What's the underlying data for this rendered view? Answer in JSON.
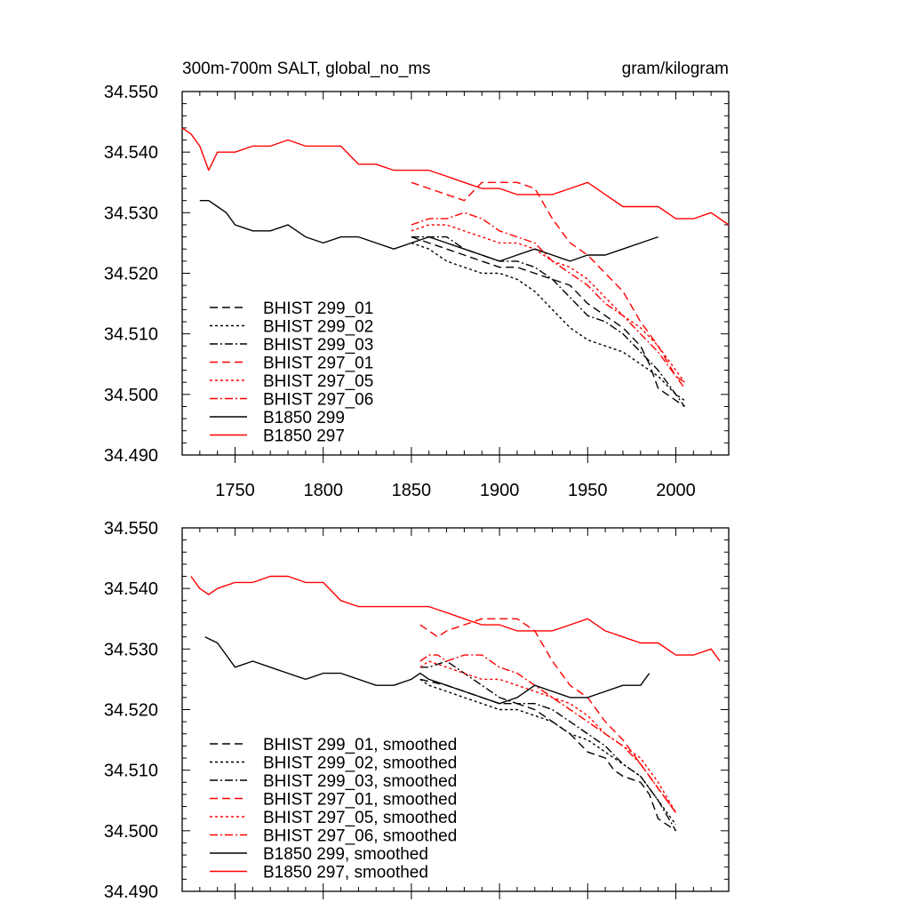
{
  "chart_data": [
    {
      "type": "line",
      "title": "300m-700m SALT, global_no_ms",
      "units": "gram/kilogram",
      "xlim": [
        1720,
        2030
      ],
      "ylim": [
        34.49,
        34.55
      ],
      "yticks": [
        34.49,
        34.5,
        34.51,
        34.52,
        34.53,
        34.54,
        34.55
      ],
      "ytick_labels": [
        "34.490",
        "34.500",
        "34.510",
        "34.520",
        "34.530",
        "34.540",
        "34.550"
      ],
      "xticks": [
        1750,
        1800,
        1850,
        1900,
        1950,
        2000
      ],
      "xtick_labels": [
        "1750",
        "1800",
        "1850",
        "1900",
        "1950",
        "2000"
      ],
      "legend_position": "bottom-left",
      "series": [
        {
          "name": "BHIST 299_01",
          "color": "#000000",
          "dash": "dashed",
          "x": [
            1850,
            1860,
            1870,
            1880,
            1890,
            1900,
            1910,
            1920,
            1930,
            1940,
            1950,
            1960,
            1970,
            1980,
            1985,
            1990,
            1995,
            2000,
            2005
          ],
          "y": [
            34.526,
            34.525,
            34.524,
            34.523,
            34.522,
            34.521,
            34.521,
            34.52,
            34.519,
            34.518,
            34.515,
            34.513,
            34.511,
            34.508,
            34.505,
            34.501,
            34.5,
            34.499,
            34.498
          ]
        },
        {
          "name": "BHIST 299_02",
          "color": "#000000",
          "dash": "dotted",
          "x": [
            1850,
            1860,
            1870,
            1880,
            1890,
            1900,
            1910,
            1920,
            1930,
            1940,
            1950,
            1960,
            1970,
            1980,
            1990,
            2000,
            2005
          ],
          "y": [
            34.525,
            34.524,
            34.522,
            34.521,
            34.52,
            34.52,
            34.519,
            34.517,
            34.514,
            34.511,
            34.509,
            34.508,
            34.507,
            34.505,
            34.503,
            34.5,
            34.499
          ]
        },
        {
          "name": "BHIST 299_03",
          "color": "#000000",
          "dash": "dashdot",
          "x": [
            1850,
            1860,
            1870,
            1880,
            1890,
            1900,
            1910,
            1920,
            1930,
            1940,
            1950,
            1960,
            1970,
            1980,
            1990,
            2000,
            2005
          ],
          "y": [
            34.526,
            34.526,
            34.526,
            34.524,
            34.523,
            34.522,
            34.522,
            34.521,
            34.519,
            34.516,
            34.513,
            34.512,
            34.51,
            34.507,
            34.504,
            34.5,
            34.498
          ]
        },
        {
          "name": "BHIST 297_01",
          "color": "#ff0000",
          "dash": "dashed",
          "x": [
            1850,
            1860,
            1870,
            1880,
            1890,
            1900,
            1910,
            1920,
            1930,
            1940,
            1950,
            1960,
            1970,
            1980,
            1990,
            2000,
            2005
          ],
          "y": [
            34.535,
            34.534,
            34.533,
            34.532,
            34.535,
            34.535,
            34.535,
            34.534,
            34.529,
            34.525,
            34.523,
            34.52,
            34.517,
            34.512,
            34.508,
            34.503,
            34.502
          ]
        },
        {
          "name": "BHIST 297_05",
          "color": "#ff0000",
          "dash": "dotted",
          "x": [
            1850,
            1860,
            1870,
            1880,
            1890,
            1900,
            1910,
            1920,
            1930,
            1940,
            1950,
            1960,
            1970,
            1980,
            1990,
            2000,
            2005
          ],
          "y": [
            34.527,
            34.528,
            34.528,
            34.527,
            34.526,
            34.525,
            34.525,
            34.524,
            34.522,
            34.521,
            34.519,
            34.516,
            34.513,
            34.511,
            34.508,
            34.504,
            34.502
          ]
        },
        {
          "name": "BHIST 297_06",
          "color": "#ff0000",
          "dash": "dashdot",
          "x": [
            1850,
            1860,
            1870,
            1880,
            1890,
            1900,
            1910,
            1920,
            1930,
            1940,
            1950,
            1960,
            1970,
            1980,
            1990,
            2000,
            2005
          ],
          "y": [
            34.528,
            34.529,
            34.529,
            34.53,
            34.529,
            34.527,
            34.526,
            34.525,
            34.522,
            34.52,
            34.518,
            34.515,
            34.513,
            34.51,
            34.507,
            34.503,
            34.501
          ]
        },
        {
          "name": "B1850 299",
          "color": "#000000",
          "dash": "solid",
          "x": [
            1730,
            1735,
            1740,
            1745,
            1750,
            1760,
            1770,
            1780,
            1790,
            1800,
            1810,
            1820,
            1830,
            1840,
            1850,
            1860,
            1870,
            1880,
            1890,
            1900,
            1910,
            1920,
            1930,
            1940,
            1950,
            1960,
            1970,
            1980,
            1990
          ],
          "y": [
            34.532,
            34.532,
            34.531,
            34.53,
            34.528,
            34.527,
            34.527,
            34.528,
            34.526,
            34.525,
            34.526,
            34.526,
            34.525,
            34.524,
            34.525,
            34.526,
            34.525,
            34.524,
            34.523,
            34.522,
            34.523,
            34.524,
            34.523,
            34.522,
            34.523,
            34.523,
            34.524,
            34.525,
            34.526
          ]
        },
        {
          "name": "B1850 297",
          "color": "#ff0000",
          "dash": "solid",
          "x": [
            1720,
            1725,
            1730,
            1735,
            1740,
            1750,
            1760,
            1770,
            1780,
            1790,
            1800,
            1810,
            1820,
            1830,
            1840,
            1850,
            1860,
            1870,
            1880,
            1890,
            1900,
            1910,
            1920,
            1930,
            1940,
            1950,
            1960,
            1970,
            1980,
            1990,
            2000,
            2010,
            2020,
            2030
          ],
          "y": [
            34.544,
            34.543,
            34.541,
            34.537,
            34.54,
            34.54,
            34.541,
            34.541,
            34.542,
            34.541,
            34.541,
            34.541,
            34.538,
            34.538,
            34.537,
            34.537,
            34.537,
            34.536,
            34.535,
            34.534,
            34.534,
            34.533,
            34.533,
            34.533,
            34.534,
            34.535,
            34.533,
            34.531,
            34.531,
            34.531,
            34.529,
            34.529,
            34.53,
            34.528
          ]
        }
      ]
    },
    {
      "type": "line",
      "xlim": [
        1720,
        2030
      ],
      "ylim": [
        34.49,
        34.55
      ],
      "yticks": [
        34.49,
        34.5,
        34.51,
        34.52,
        34.53,
        34.54,
        34.55
      ],
      "ytick_labels": [
        "34.490",
        "34.500",
        "34.510",
        "34.520",
        "34.530",
        "34.540",
        "34.550"
      ],
      "xticks": [
        1750,
        1800,
        1850,
        1900,
        1950,
        2000
      ],
      "legend_position": "bottom-left",
      "series": [
        {
          "name": "BHIST 299_01, smoothed",
          "color": "#000000",
          "dash": "dashed",
          "x": [
            1855,
            1870,
            1880,
            1890,
            1900,
            1910,
            1920,
            1930,
            1940,
            1950,
            1960,
            1965,
            1970,
            1980,
            1985,
            1990,
            2000
          ],
          "y": [
            34.525,
            34.524,
            34.523,
            34.522,
            34.521,
            34.521,
            34.52,
            34.518,
            34.516,
            34.513,
            34.512,
            34.51,
            34.509,
            34.508,
            34.506,
            34.502,
            34.5
          ]
        },
        {
          "name": "BHIST 299_02, smoothed",
          "color": "#000000",
          "dash": "dotted",
          "x": [
            1855,
            1860,
            1870,
            1880,
            1890,
            1900,
            1910,
            1920,
            1930,
            1940,
            1950,
            1960,
            1970,
            1980,
            1990,
            2000
          ],
          "y": [
            34.525,
            34.524,
            34.523,
            34.522,
            34.521,
            34.52,
            34.52,
            34.519,
            34.518,
            34.516,
            34.515,
            34.513,
            34.511,
            34.509,
            34.505,
            34.501
          ]
        },
        {
          "name": "BHIST 299_03, smoothed",
          "color": "#000000",
          "dash": "dashdot",
          "x": [
            1855,
            1860,
            1870,
            1880,
            1890,
            1900,
            1910,
            1920,
            1930,
            1940,
            1950,
            1960,
            1970,
            1980,
            1990,
            2000
          ],
          "y": [
            34.527,
            34.527,
            34.528,
            34.526,
            34.524,
            34.522,
            34.521,
            34.521,
            34.52,
            34.518,
            34.516,
            34.514,
            34.511,
            34.509,
            34.505,
            34.5
          ]
        },
        {
          "name": "BHIST 297_01, smoothed",
          "color": "#ff0000",
          "dash": "dashed",
          "x": [
            1855,
            1865,
            1870,
            1880,
            1890,
            1900,
            1910,
            1920,
            1930,
            1940,
            1950,
            1960,
            1970,
            1980,
            1990,
            2000
          ],
          "y": [
            34.534,
            34.532,
            34.533,
            34.534,
            34.535,
            34.535,
            34.535,
            34.533,
            34.528,
            34.524,
            34.522,
            34.518,
            34.515,
            34.511,
            34.507,
            34.503
          ]
        },
        {
          "name": "BHIST 297_05, smoothed",
          "color": "#ff0000",
          "dash": "dotted",
          "x": [
            1855,
            1860,
            1870,
            1880,
            1890,
            1900,
            1910,
            1920,
            1930,
            1940,
            1950,
            1960,
            1970,
            1980,
            1990,
            2000
          ],
          "y": [
            34.527,
            34.528,
            34.527,
            34.526,
            34.525,
            34.525,
            34.524,
            34.523,
            34.522,
            34.521,
            34.519,
            34.516,
            34.514,
            34.512,
            34.508,
            34.503
          ]
        },
        {
          "name": "BHIST 297_06, smoothed",
          "color": "#ff0000",
          "dash": "dashdot",
          "x": [
            1855,
            1860,
            1865,
            1870,
            1880,
            1890,
            1900,
            1910,
            1920,
            1930,
            1940,
            1950,
            1960,
            1970,
            1980,
            1990,
            2000
          ],
          "y": [
            34.528,
            34.529,
            34.529,
            34.528,
            34.529,
            34.529,
            34.527,
            34.526,
            34.524,
            34.522,
            34.52,
            34.518,
            34.516,
            34.514,
            34.511,
            34.507,
            34.503
          ]
        },
        {
          "name": "B1850 299, smoothed",
          "color": "#000000",
          "dash": "solid",
          "x": [
            1733,
            1740,
            1745,
            1750,
            1760,
            1770,
            1780,
            1790,
            1800,
            1810,
            1820,
            1830,
            1840,
            1850,
            1855,
            1860,
            1870,
            1880,
            1890,
            1900,
            1910,
            1920,
            1930,
            1940,
            1950,
            1960,
            1970,
            1980,
            1985
          ],
          "y": [
            34.532,
            34.531,
            34.529,
            34.527,
            34.528,
            34.527,
            34.526,
            34.525,
            34.526,
            34.526,
            34.525,
            34.524,
            34.524,
            34.525,
            34.526,
            34.525,
            34.524,
            34.523,
            34.522,
            34.521,
            34.522,
            34.524,
            34.523,
            34.522,
            34.522,
            34.523,
            34.524,
            34.524,
            34.526
          ]
        },
        {
          "name": "B1850 297, smoothed",
          "color": "#ff0000",
          "dash": "solid",
          "x": [
            1725,
            1730,
            1735,
            1740,
            1750,
            1760,
            1770,
            1780,
            1790,
            1800,
            1810,
            1820,
            1830,
            1840,
            1850,
            1860,
            1870,
            1880,
            1890,
            1900,
            1910,
            1920,
            1930,
            1940,
            1950,
            1960,
            1970,
            1980,
            1990,
            2000,
            2010,
            2020,
            2025
          ],
          "y": [
            34.542,
            34.54,
            34.539,
            34.54,
            34.541,
            34.541,
            34.542,
            34.542,
            34.541,
            34.541,
            34.538,
            34.537,
            34.537,
            34.537,
            34.537,
            34.537,
            34.536,
            34.535,
            34.534,
            34.534,
            34.533,
            34.533,
            34.533,
            34.534,
            34.535,
            34.533,
            34.532,
            34.531,
            34.531,
            34.529,
            34.529,
            34.53,
            34.528
          ]
        }
      ]
    }
  ]
}
